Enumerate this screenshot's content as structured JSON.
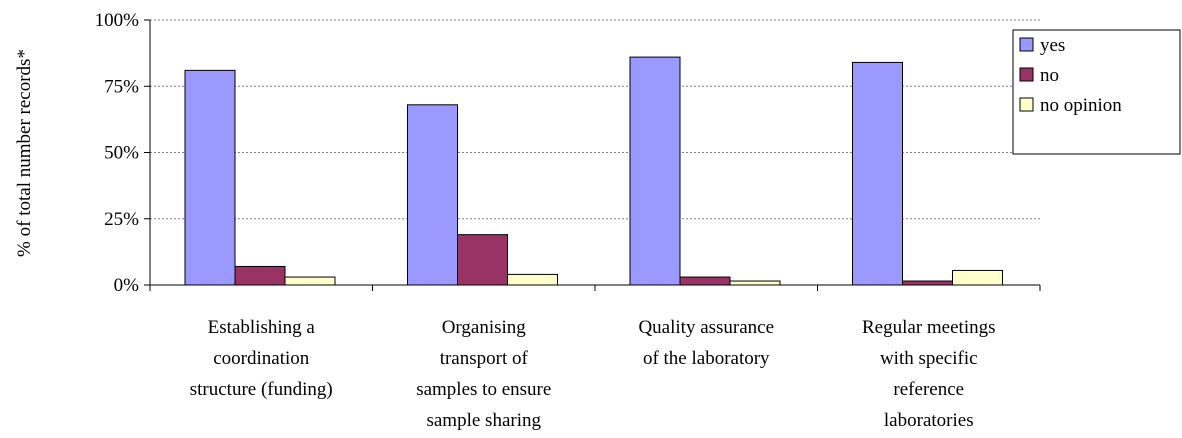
{
  "chart_data": {
    "type": "bar",
    "ylabel": "% of total number records*",
    "ylim": [
      0,
      100
    ],
    "y_ticks": [
      {
        "value": 0,
        "label": "0%"
      },
      {
        "value": 25,
        "label": "25%"
      },
      {
        "value": 50,
        "label": "50%"
      },
      {
        "value": 75,
        "label": "75%"
      },
      {
        "value": 100,
        "label": "100%"
      }
    ],
    "grid": true,
    "legend_position": "right",
    "categories": [
      [
        "Establishing a",
        "coordination",
        "structure (funding)"
      ],
      [
        "Organising",
        "transport of",
        "samples to ensure",
        "sample sharing"
      ],
      [
        "Quality assurance",
        "of the laboratory"
      ],
      [
        "Regular meetings",
        "with specific",
        "reference",
        "laboratories"
      ]
    ],
    "series": [
      {
        "name": "yes",
        "color": "#9999ff",
        "values": [
          81,
          68,
          86,
          84
        ]
      },
      {
        "name": "no",
        "color": "#993366",
        "values": [
          7,
          19,
          3,
          1.5
        ]
      },
      {
        "name": "no opinion",
        "color": "#ffffcc",
        "values": [
          3,
          4,
          1.5,
          5.5
        ]
      }
    ]
  }
}
